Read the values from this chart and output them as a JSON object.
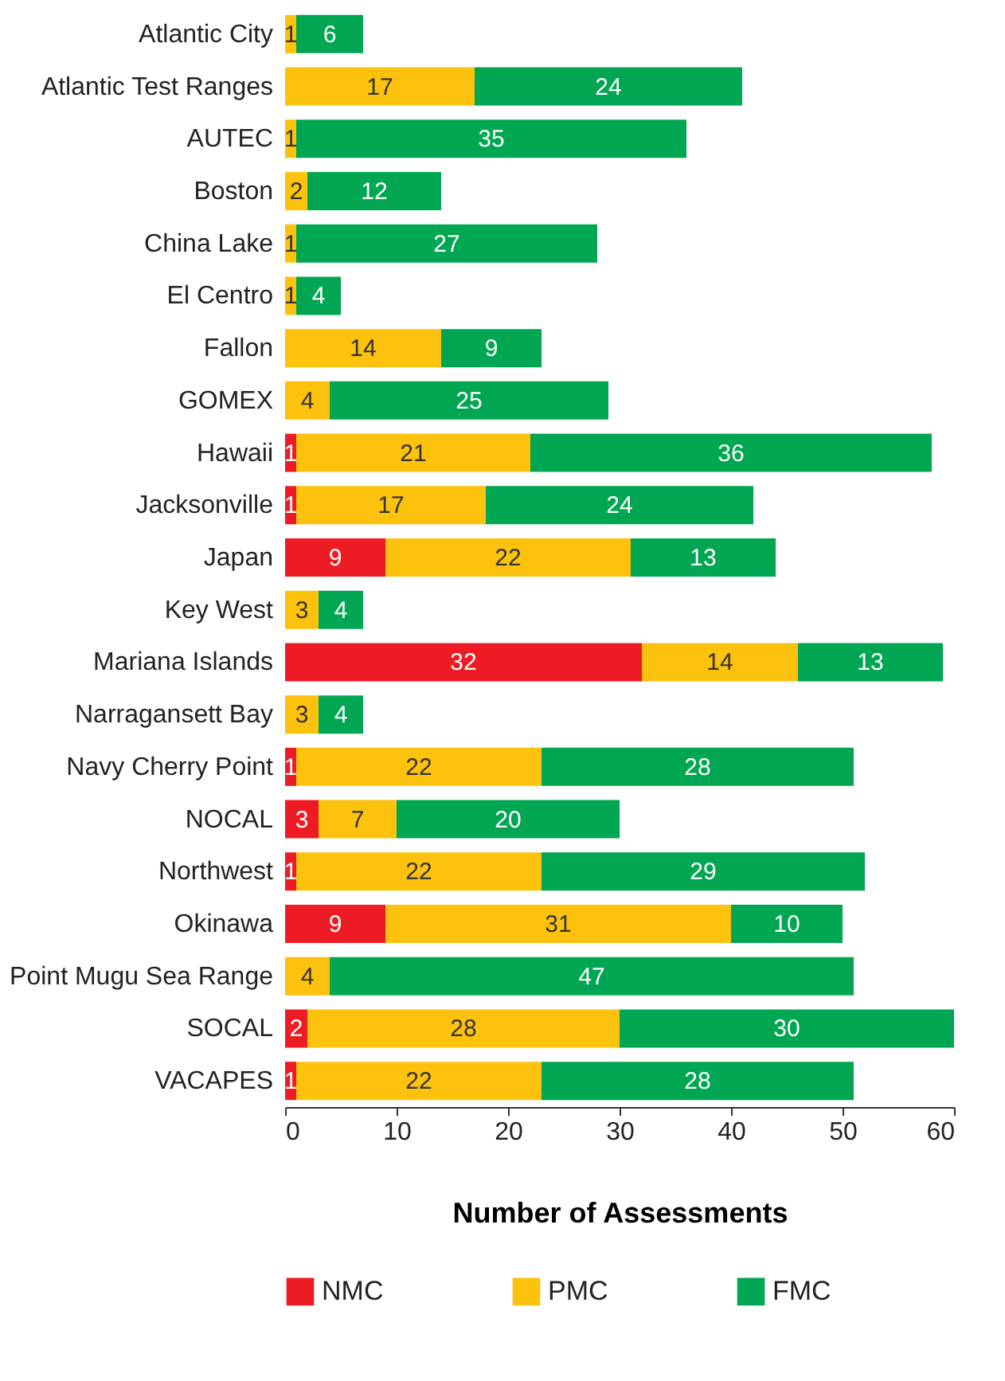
{
  "chart_data": {
    "type": "bar",
    "orientation": "horizontal",
    "stacked": true,
    "xlabel": "Number of Assessments",
    "categories": [
      "Atlantic City",
      "Atlantic Test Ranges",
      "AUTEC",
      "Boston",
      "China Lake",
      "El Centro",
      "Fallon",
      "GOMEX",
      "Hawaii",
      "Jacksonville",
      "Japan",
      "Key West",
      "Mariana Islands",
      "Narragansett Bay",
      "Navy Cherry Point",
      "NOCAL",
      "Northwest",
      "Okinawa",
      "Point Mugu Sea Range",
      "SOCAL",
      "VACAPES"
    ],
    "series": [
      {
        "name": "NMC",
        "color": "#ed1c24",
        "values": [
          null,
          null,
          null,
          null,
          null,
          null,
          null,
          null,
          1,
          1,
          9,
          null,
          32,
          null,
          1,
          3,
          1,
          9,
          null,
          2,
          1
        ]
      },
      {
        "name": "PMC",
        "color": "#fdc20d",
        "values": [
          1,
          17,
          1,
          2,
          1,
          1,
          14,
          4,
          21,
          17,
          22,
          3,
          14,
          3,
          22,
          7,
          22,
          31,
          4,
          28,
          22
        ]
      },
      {
        "name": "FMC",
        "color": "#00a651",
        "values": [
          6,
          24,
          35,
          12,
          27,
          4,
          9,
          25,
          36,
          24,
          13,
          4,
          13,
          4,
          28,
          20,
          29,
          10,
          47,
          30,
          28
        ]
      }
    ],
    "xlim": [
      0,
      60
    ],
    "xticks": [
      0,
      10,
      20,
      30,
      40,
      50,
      60
    ],
    "data_labels": true,
    "grid": false,
    "legend": "bottom"
  }
}
